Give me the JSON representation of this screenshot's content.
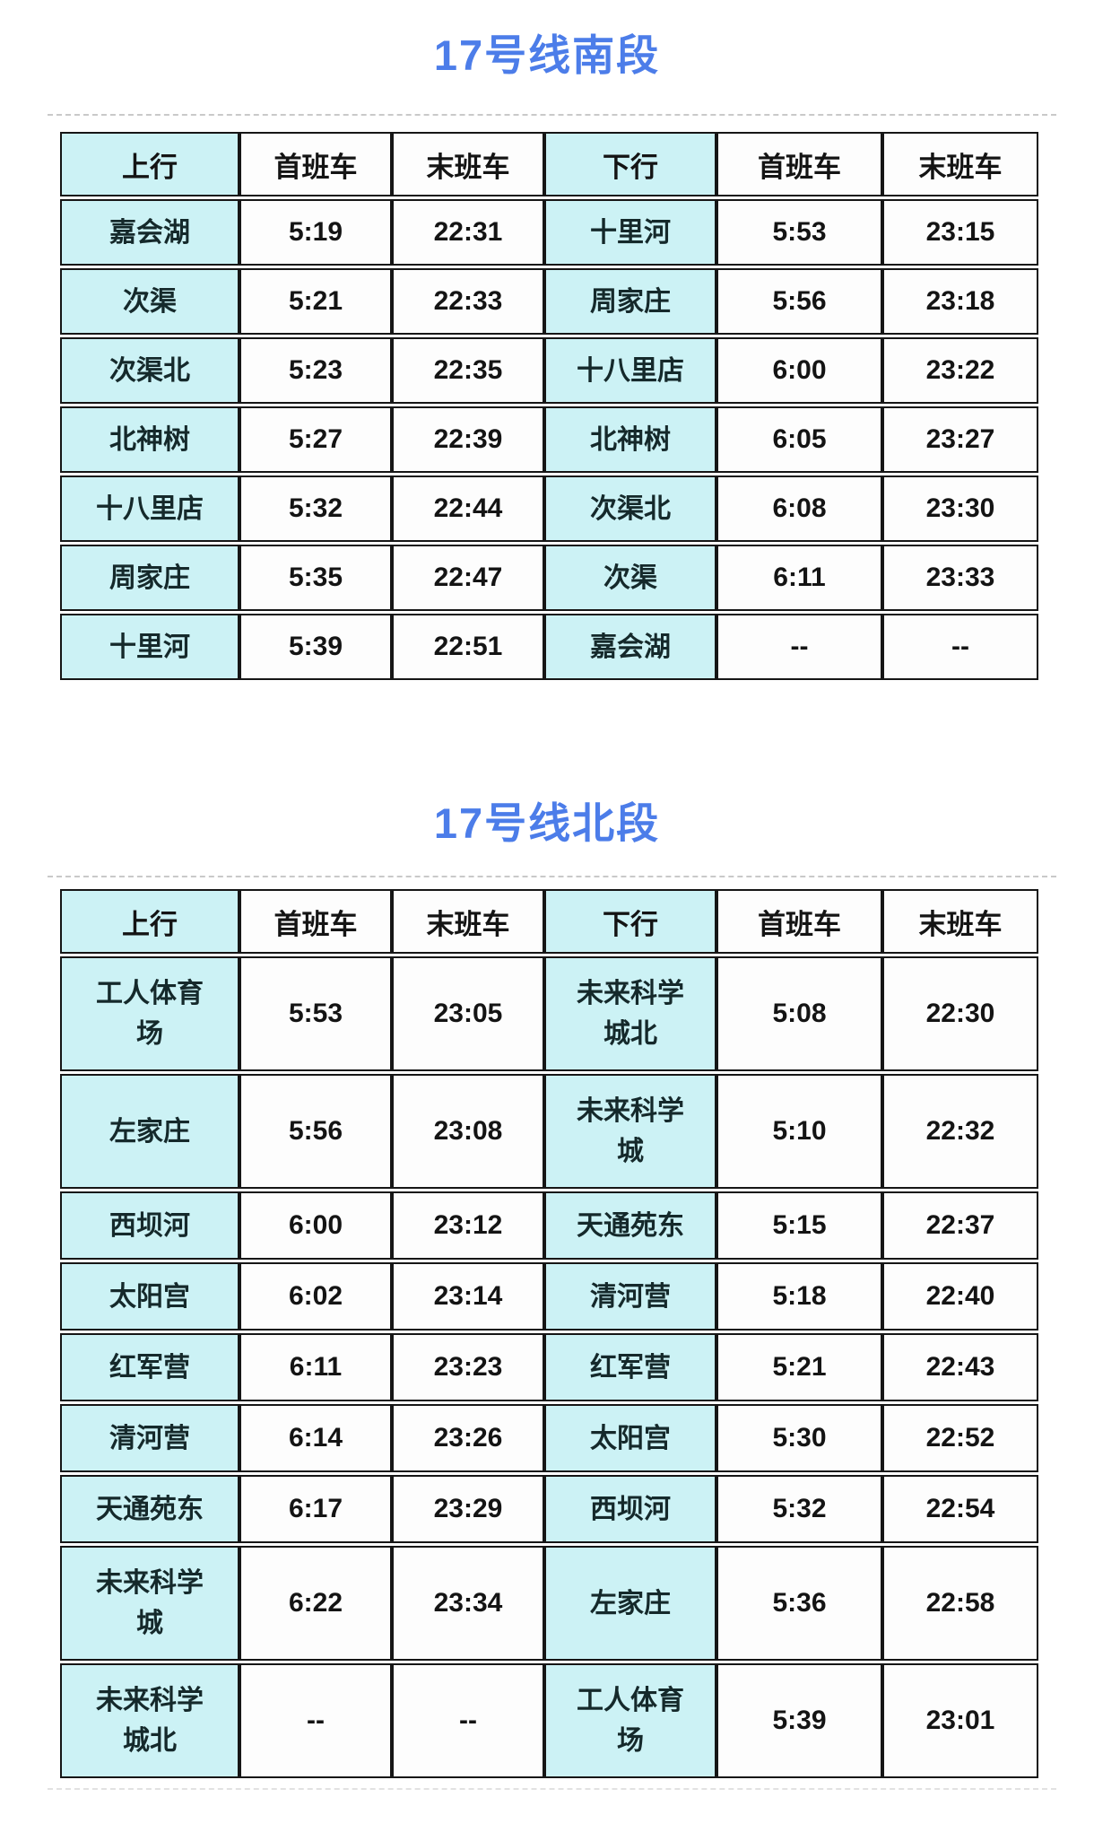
{
  "colors": {
    "accent": "#4c7de9",
    "station_bg": "#ccf2f5",
    "cell_bg": "#fdfdfd",
    "grid": "#161616",
    "dash": "#c9c9c9"
  },
  "tables": [
    {
      "title": "17号线南段",
      "headers": [
        "上行",
        "首班车",
        "末班车",
        "下行",
        "首班车",
        "末班车"
      ],
      "rows": [
        [
          "嘉会湖",
          "5:19",
          "22:31",
          "十里河",
          "5:53",
          "23:15"
        ],
        [
          "次渠",
          "5:21",
          "22:33",
          "周家庄",
          "5:56",
          "23:18"
        ],
        [
          "次渠北",
          "5:23",
          "22:35",
          "十八里店",
          "6:00",
          "23:22"
        ],
        [
          "北神树",
          "5:27",
          "22:39",
          "北神树",
          "6:05",
          "23:27"
        ],
        [
          "十八里店",
          "5:32",
          "22:44",
          "次渠北",
          "6:08",
          "23:30"
        ],
        [
          "周家庄",
          "5:35",
          "22:47",
          "次渠",
          "6:11",
          "23:33"
        ],
        [
          "十里河",
          "5:39",
          "22:51",
          "嘉会湖",
          "--",
          "--"
        ]
      ]
    },
    {
      "title": "17号线北段",
      "headers": [
        "上行",
        "首班车",
        "末班车",
        "下行",
        "首班车",
        "末班车"
      ],
      "rows": [
        [
          "工人体育场",
          "5:53",
          "23:05",
          "未来科学城北",
          "5:08",
          "22:30"
        ],
        [
          "左家庄",
          "5:56",
          "23:08",
          "未来科学城",
          "5:10",
          "22:32"
        ],
        [
          "西坝河",
          "6:00",
          "23:12",
          "天通苑东",
          "5:15",
          "22:37"
        ],
        [
          "太阳宫",
          "6:02",
          "23:14",
          "清河营",
          "5:18",
          "22:40"
        ],
        [
          "红军营",
          "6:11",
          "23:23",
          "红军营",
          "5:21",
          "22:43"
        ],
        [
          "清河营",
          "6:14",
          "23:26",
          "太阳宫",
          "5:30",
          "22:52"
        ],
        [
          "天通苑东",
          "6:17",
          "23:29",
          "西坝河",
          "5:32",
          "22:54"
        ],
        [
          "未来科学城",
          "6:22",
          "23:34",
          "左家庄",
          "5:36",
          "22:58"
        ],
        [
          "未来科学城北",
          "--",
          "--",
          "工人体育场",
          "5:39",
          "23:01"
        ]
      ]
    }
  ]
}
